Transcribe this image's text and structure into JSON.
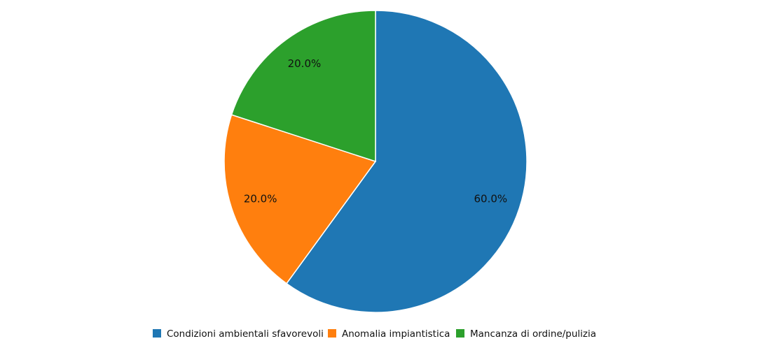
{
  "chart_data": {
    "type": "pie",
    "title": "",
    "start_angle": "top",
    "direction": "clockwise",
    "legend_position": "bottom",
    "slices": [
      {
        "name": "Condizioni ambientali sfavorevoli",
        "value": 60.0,
        "label": "60.0%",
        "color": "#1f77b4"
      },
      {
        "name": "Anomalia impiantistica",
        "value": 20.0,
        "label": "20.0%",
        "color": "#ff7f0e"
      },
      {
        "name": "Mancanza di ordine/pulizia",
        "value": 20.0,
        "label": "20.0%",
        "color": "#2ca02c"
      }
    ]
  }
}
